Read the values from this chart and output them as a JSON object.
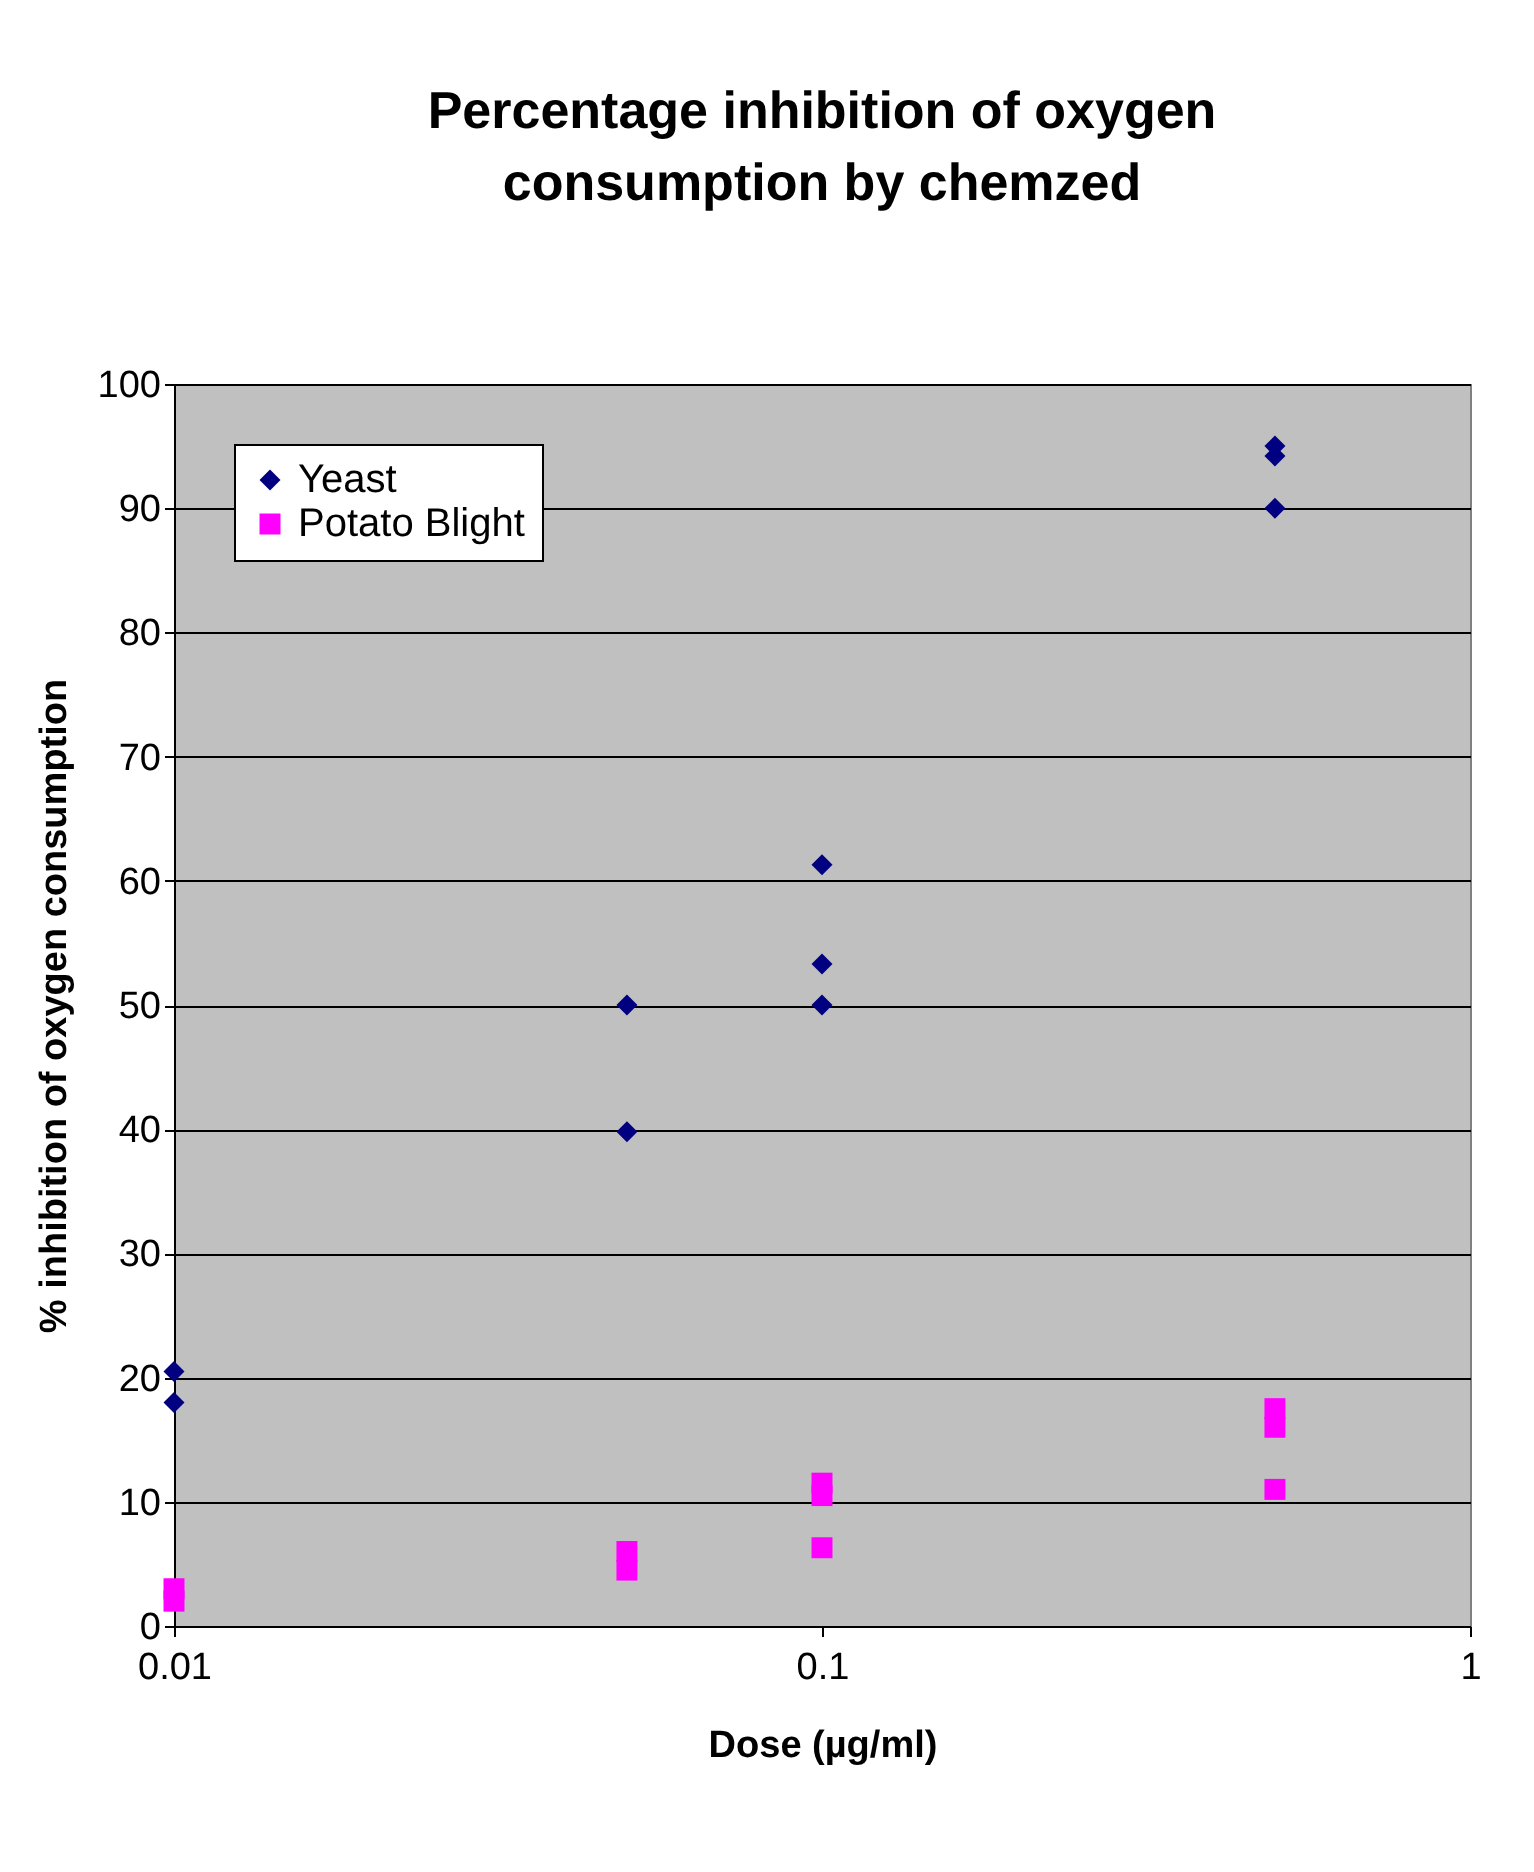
{
  "chart_data": {
    "type": "scatter",
    "title": "Percentage inhibition of oxygen consumption by chemzed",
    "xlabel": "Dose (µg/ml)",
    "ylabel": "% inhibition of oxygen consumption",
    "log": "x",
    "xlim": [
      0.01,
      1
    ],
    "xticks": [
      0.01,
      0.1,
      1
    ],
    "ylim": [
      0,
      100
    ],
    "yticks": [
      0,
      10,
      20,
      30,
      40,
      50,
      60,
      70,
      80,
      90,
      100
    ],
    "grid": "y",
    "legend": "top left",
    "series": [
      {
        "name": "Yeast",
        "color": "#000080",
        "marker": "diamond",
        "x": [
          0.01,
          0.01,
          0.05,
          0.05,
          0.1,
          0.1,
          0.1,
          0.5,
          0.5,
          0.5
        ],
        "values": [
          20.5,
          18,
          50,
          39.8,
          61.3,
          53.3,
          50,
          95,
          94.2,
          90
        ]
      },
      {
        "name": "Potato Blight",
        "color": "#ff00ff",
        "marker": "square",
        "x": [
          0.01,
          0.01,
          0.05,
          0.05,
          0.1,
          0.1,
          0.1,
          0.5,
          0.5,
          0.5
        ],
        "values": [
          3,
          2,
          6,
          4.5,
          11.5,
          10.5,
          6.3,
          17.5,
          16,
          11
        ]
      }
    ]
  }
}
